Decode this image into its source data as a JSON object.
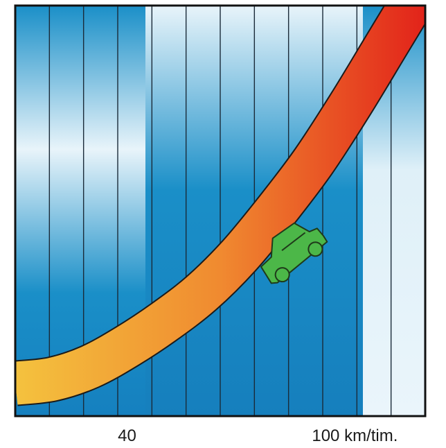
{
  "chart_data": {
    "type": "line",
    "title": "",
    "xlabel": "",
    "ylabel": "",
    "x_ticks": [
      {
        "value": 40,
        "label": "40"
      },
      {
        "value": 100,
        "label": "100 km/tim."
      }
    ],
    "xlim": [
      10,
      120
    ],
    "ylim": [
      0,
      10
    ],
    "grid": true,
    "legend": "none",
    "series": [
      {
        "x": [
          10,
          20,
          30,
          40,
          50,
          60,
          70,
          80,
          90,
          100,
          110,
          120
        ],
        "y": [
          0.8,
          0.9,
          1.2,
          1.7,
          2.3,
          3.0,
          3.9,
          5.0,
          6.2,
          7.6,
          9.1,
          10.6
        ]
      }
    ],
    "colors": {
      "curve_start": "#f4c23e",
      "curve_mid": "#f08a30",
      "curve_end": "#e2231a",
      "background": "#1a8fc8",
      "car": "#4cb748"
    }
  }
}
